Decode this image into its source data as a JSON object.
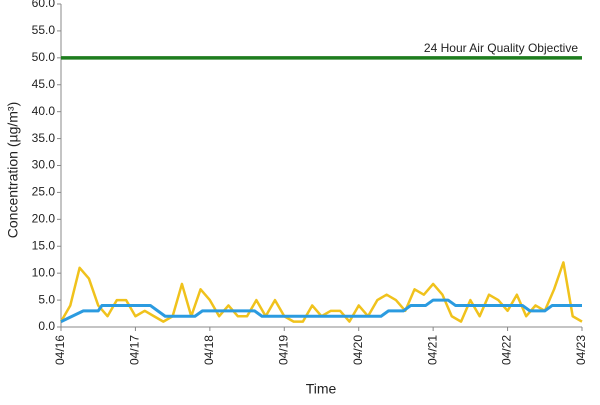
{
  "chart_data": {
    "type": "line",
    "xlabel": "Time",
    "ylabel": "Concentration (µg/m³)",
    "annotation": "24 Hour Air Quality Objective",
    "xlim": [
      0,
      7
    ],
    "xticks": [
      {
        "value": 0,
        "label": "04/16"
      },
      {
        "value": 1,
        "label": "04/17"
      },
      {
        "value": 2,
        "label": "04/18"
      },
      {
        "value": 3,
        "label": "04/19"
      },
      {
        "value": 4,
        "label": "04/20"
      },
      {
        "value": 5,
        "label": "04/21"
      },
      {
        "value": 6,
        "label": "04/22"
      },
      {
        "value": 7,
        "label": "04/23"
      }
    ],
    "ylim": [
      0,
      60
    ],
    "yticks": [
      {
        "value": 0,
        "label": "0.0"
      },
      {
        "value": 5,
        "label": "5.0"
      },
      {
        "value": 10,
        "label": "10.0"
      },
      {
        "value": 15,
        "label": "15.0"
      },
      {
        "value": 20,
        "label": "20.0"
      },
      {
        "value": 25,
        "label": "25.0"
      },
      {
        "value": 30,
        "label": "30.0"
      },
      {
        "value": 35,
        "label": "35.0"
      },
      {
        "value": 40,
        "label": "40.0"
      },
      {
        "value": 45,
        "label": "45.0"
      },
      {
        "value": 50,
        "label": "50.0"
      },
      {
        "value": 55,
        "label": "55.0"
      },
      {
        "value": 60,
        "label": "60.0"
      }
    ],
    "grid": false,
    "series": [
      {
        "color": "#f0c21c",
        "width": 2.5,
        "x": [
          0,
          0.125,
          0.25,
          0.375,
          0.5,
          0.625,
          0.75,
          0.875,
          1,
          1.125,
          1.25,
          1.375,
          1.5,
          1.625,
          1.75,
          1.875,
          2,
          2.125,
          2.25,
          2.375,
          2.5,
          2.625,
          2.75,
          2.875,
          3,
          3.125,
          3.25,
          3.375,
          3.5,
          3.625,
          3.75,
          3.875,
          4,
          4.125,
          4.25,
          4.375,
          4.5,
          4.625,
          4.75,
          4.875,
          5,
          5.125,
          5.25,
          5.375,
          5.5,
          5.625,
          5.75,
          5.875,
          6,
          6.125,
          6.25,
          6.375,
          6.5,
          6.625,
          6.75,
          6.875,
          7
        ],
        "values": [
          1,
          4,
          11,
          9,
          4,
          2,
          5,
          5,
          2,
          3,
          2,
          1,
          2,
          8,
          2,
          7,
          5,
          2,
          4,
          2,
          2,
          5,
          2,
          5,
          2,
          1,
          1,
          4,
          2,
          3,
          3,
          1,
          4,
          2,
          5,
          6,
          5,
          3,
          7,
          6,
          8,
          6,
          2,
          1,
          5,
          2,
          6,
          5,
          3,
          6,
          2,
          4,
          3,
          7,
          12,
          2,
          1
        ]
      },
      {
        "color": "#2b9be0",
        "width": 3,
        "x": [
          0,
          0.15,
          0.3,
          0.5,
          0.55,
          1.2,
          1.3,
          1.4,
          1.8,
          1.9,
          2.6,
          2.7,
          4.3,
          4.4,
          4.6,
          4.7,
          4.9,
          5.0,
          5.2,
          5.3,
          6.2,
          6.3,
          6.5,
          6.6,
          7
        ],
        "values": [
          1,
          2,
          3,
          3,
          4,
          4,
          3,
          2,
          2,
          3,
          3,
          2,
          2,
          3,
          3,
          4,
          4,
          5,
          5,
          4,
          4,
          3,
          3,
          4,
          4
        ]
      },
      {
        "color": "#1e7d1e",
        "width": 3.5,
        "x": [
          0,
          7
        ],
        "values": [
          50,
          50
        ]
      }
    ]
  }
}
